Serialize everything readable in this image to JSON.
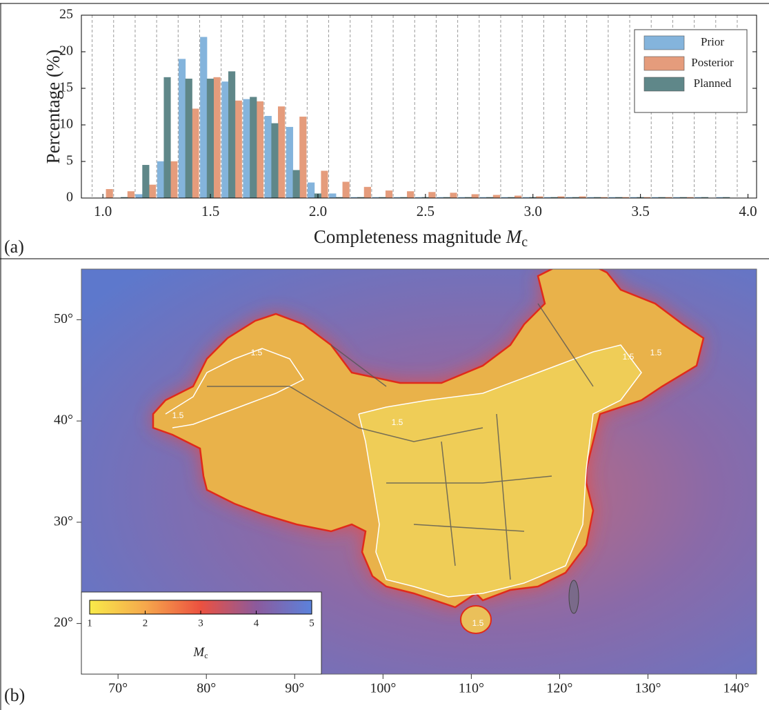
{
  "chart_data": [
    {
      "type": "histogram",
      "panel_label": "(a)",
      "xlabel": "Completeness magnitude",
      "xlabel_symbol": "M",
      "xlabel_subscript": "c",
      "ylabel": "Percentage (%)",
      "bins": [
        0.95,
        1.05,
        1.15,
        1.25,
        1.35,
        1.45,
        1.55,
        1.65,
        1.75,
        1.85,
        1.95,
        2.05,
        2.15,
        2.25,
        2.35,
        2.45,
        2.55,
        2.65,
        2.75,
        2.85,
        2.95,
        3.05,
        3.15,
        3.25,
        3.35,
        3.45,
        3.55,
        3.65,
        3.75,
        3.85,
        3.95
      ],
      "series": [
        {
          "name": "Prior",
          "color": "#84b4dc",
          "values": [
            0,
            0,
            0.5,
            5,
            19,
            22,
            15.9,
            13.5,
            11.2,
            9.7,
            2.1,
            0.6,
            0.1,
            0.1,
            0.1,
            0.1,
            0.1,
            0.1,
            0.1,
            0.1,
            0.1,
            0.1,
            0.1,
            0.1,
            0.1,
            0.1,
            0.1,
            0.1,
            0.1,
            0.1
          ]
        },
        {
          "name": "Posterior",
          "color": "#e59c7c",
          "values": [
            1.2,
            0.9,
            1.8,
            5,
            12.2,
            16.5,
            13.3,
            13.2,
            12.5,
            11.1,
            3.7,
            2.2,
            1.5,
            1,
            0.9,
            0.8,
            0.7,
            0.5,
            0.4,
            0.3,
            0.2,
            0.2,
            0.2,
            0.1,
            0.1,
            0.1,
            0.1,
            0.1,
            0,
            0
          ]
        },
        {
          "name": "Planned",
          "color": "#5f8789",
          "values": [
            0,
            0.1,
            4.5,
            16.5,
            16.3,
            16.3,
            17.3,
            13.8,
            10.2,
            3.8,
            0.6,
            0.1,
            0.1,
            0.1,
            0.1,
            0.1,
            0.1,
            0.1,
            0.1,
            0.1,
            0.1,
            0.1,
            0.1,
            0.1,
            0.1,
            0.1,
            0.1,
            0.1,
            0.1,
            0.1
          ]
        }
      ],
      "xlim": [
        0.9,
        4.04
      ],
      "xticks": [
        {
          "value": 1,
          "label": "1.0"
        },
        {
          "value": 1.5,
          "label": "1.5"
        },
        {
          "value": 2,
          "label": "2.0"
        },
        {
          "value": 2.5,
          "label": "2.5"
        },
        {
          "value": 3,
          "label": "3.0"
        },
        {
          "value": 3.5,
          "label": "3.5"
        },
        {
          "value": 4,
          "label": "4.0"
        }
      ],
      "ylim": [
        0,
        25
      ],
      "yticks": [
        0,
        5,
        10,
        15,
        20,
        25
      ],
      "grid": true,
      "legend": "upper right"
    },
    {
      "type": "map",
      "panel_label": "(b)",
      "xlim": [
        65.85,
        142.3
      ],
      "xticks": [
        {
          "value": 70,
          "label": "70°"
        },
        {
          "value": 80,
          "label": "80°"
        },
        {
          "value": 90,
          "label": "90°"
        },
        {
          "value": 100,
          "label": "100°"
        },
        {
          "value": 110,
          "label": "110°"
        },
        {
          "value": 120,
          "label": "120°"
        },
        {
          "value": 130,
          "label": "130°"
        },
        {
          "value": 140,
          "label": "140°"
        }
      ],
      "ylim": [
        15,
        55
      ],
      "yticks": [
        {
          "value": 20,
          "label": "20°"
        },
        {
          "value": 30,
          "label": "30°"
        },
        {
          "value": 40,
          "label": "40°"
        },
        {
          "value": 50,
          "label": "50°"
        }
      ],
      "colorbar": {
        "lim": [
          1,
          5
        ],
        "ticks": [
          1,
          2,
          3,
          4,
          5
        ],
        "colors": [
          "#f8ea4a",
          "#f6a84c",
          "#ec5140",
          "#8c5a9c",
          "#5b82dc"
        ],
        "label": "M",
        "label_subscript": "c"
      },
      "annotations": [
        "1.5",
        "1.5",
        "1.5",
        "1.5",
        "1.5",
        "1.5"
      ]
    }
  ]
}
